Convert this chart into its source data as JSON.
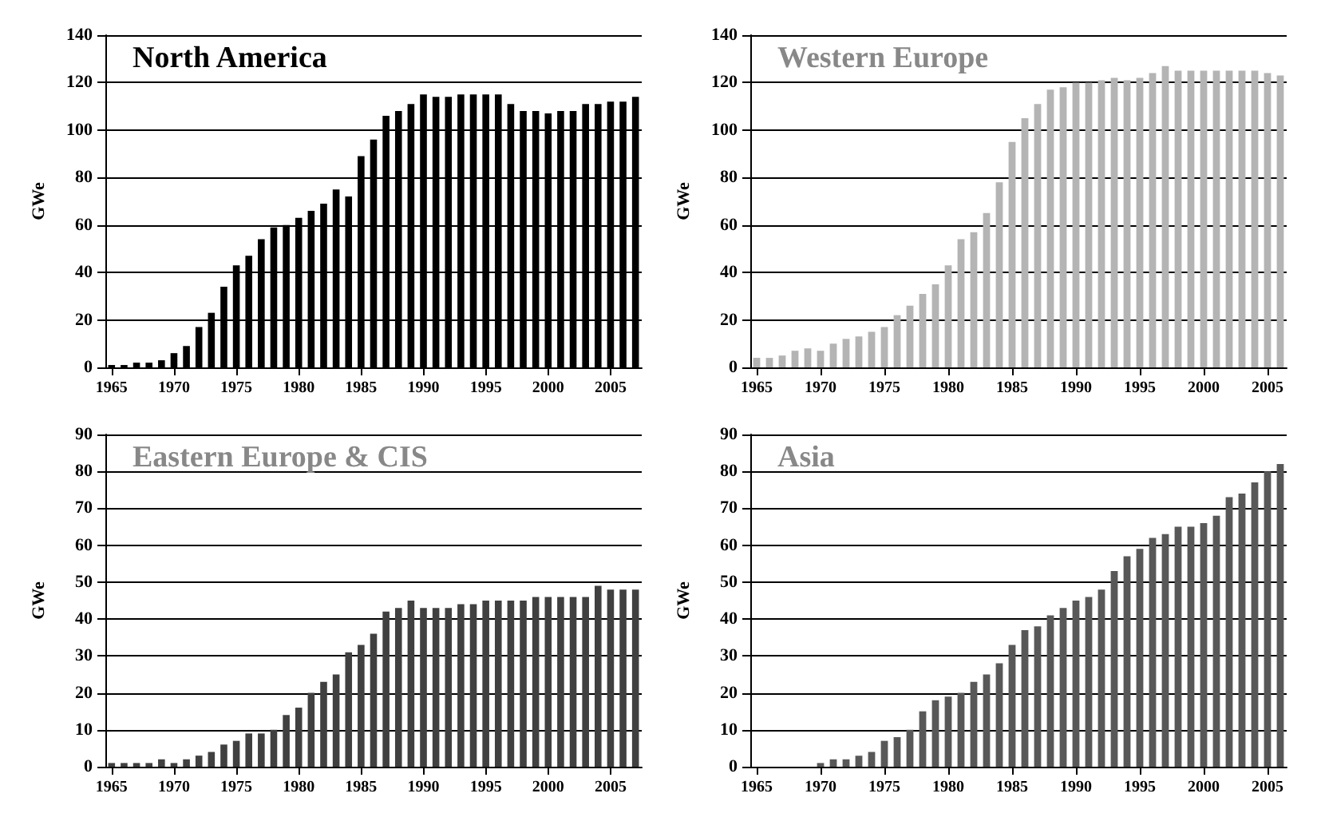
{
  "chart_data": [
    {
      "type": "bar",
      "title": "North America",
      "ylabel": "GWe",
      "categories": [
        "1965",
        null,
        null,
        null,
        null,
        "1970",
        null,
        null,
        null,
        null,
        "1975",
        null,
        null,
        null,
        null,
        "1980",
        null,
        null,
        null,
        null,
        "1985",
        null,
        null,
        null,
        null,
        "1990",
        null,
        null,
        null,
        null,
        "1995",
        null,
        null,
        null,
        null,
        "2000",
        null,
        null,
        null,
        null,
        "2005",
        null,
        null
      ],
      "series": [
        {
          "color": "#000000",
          "values": [
            1,
            1,
            2,
            2,
            3,
            6,
            9,
            17,
            23,
            34,
            43,
            47,
            54,
            59,
            60,
            63,
            66,
            69,
            75,
            72,
            89,
            96,
            106,
            108,
            111,
            115,
            114,
            114,
            115,
            115,
            115,
            115,
            111,
            108,
            108,
            107,
            108,
            108,
            111,
            111,
            112,
            112,
            114
          ]
        }
      ],
      "ylim": [
        0,
        140
      ],
      "yticks": [
        0,
        20,
        40,
        60,
        80,
        100,
        120,
        140
      ],
      "grid": "y"
    },
    {
      "type": "bar",
      "title": "Western Europe",
      "ylabel": "GWe",
      "categories": [
        "1965",
        null,
        null,
        null,
        null,
        "1970",
        null,
        null,
        null,
        null,
        "1975",
        null,
        null,
        null,
        null,
        "1980",
        null,
        null,
        null,
        null,
        "1985",
        null,
        null,
        null,
        null,
        "1990",
        null,
        null,
        null,
        null,
        "1995",
        null,
        null,
        null,
        null,
        "2000",
        null,
        null,
        null,
        null,
        "2005",
        null
      ],
      "series": [
        {
          "color": "#b4b4b4",
          "values": [
            4,
            4,
            5,
            7,
            8,
            7,
            10,
            12,
            13,
            15,
            17,
            22,
            26,
            31,
            35,
            43,
            54,
            57,
            65,
            78,
            95,
            105,
            111,
            117,
            118,
            120,
            120,
            121,
            122,
            121,
            122,
            124,
            127,
            125,
            125,
            125,
            125,
            125,
            125,
            125,
            124,
            123
          ]
        }
      ],
      "ylim": [
        0,
        140
      ],
      "yticks": [
        0,
        20,
        40,
        60,
        80,
        100,
        120,
        140
      ],
      "grid": "y"
    },
    {
      "type": "bar",
      "title": "Eastern Europe & CIS",
      "ylabel": "GWe",
      "categories": [
        "1965",
        null,
        null,
        null,
        null,
        "1970",
        null,
        null,
        null,
        null,
        "1975",
        null,
        null,
        null,
        null,
        "1980",
        null,
        null,
        null,
        null,
        "1985",
        null,
        null,
        null,
        null,
        "1990",
        null,
        null,
        null,
        null,
        "1995",
        null,
        null,
        null,
        null,
        "2000",
        null,
        null,
        null,
        null,
        "2005",
        null,
        null
      ],
      "series": [
        {
          "color": "#404040",
          "values": [
            1,
            1,
            1,
            1,
            2,
            1,
            2,
            3,
            4,
            6,
            7,
            9,
            9,
            10,
            14,
            16,
            20,
            23,
            25,
            31,
            33,
            36,
            42,
            43,
            45,
            43,
            43,
            43,
            44,
            44,
            45,
            45,
            45,
            45,
            46,
            46,
            46,
            46,
            46,
            49,
            48,
            48,
            48
          ]
        }
      ],
      "ylim": [
        0,
        90
      ],
      "yticks": [
        0,
        10,
        20,
        30,
        40,
        50,
        60,
        70,
        80,
        90
      ],
      "grid": "y"
    },
    {
      "type": "bar",
      "title": "Asia",
      "ylabel": "GWe",
      "categories": [
        "1965",
        null,
        null,
        null,
        null,
        "1970",
        null,
        null,
        null,
        null,
        "1975",
        null,
        null,
        null,
        null,
        "1980",
        null,
        null,
        null,
        null,
        "1985",
        null,
        null,
        null,
        null,
        "1990",
        null,
        null,
        null,
        null,
        "1995",
        null,
        null,
        null,
        null,
        "2000",
        null,
        null,
        null,
        null,
        "2005",
        null
      ],
      "series": [
        {
          "color": "#585858",
          "values": [
            0,
            0,
            0,
            0,
            0,
            1,
            2,
            2,
            3,
            4,
            7,
            8,
            10,
            15,
            18,
            19,
            20,
            23,
            25,
            28,
            33,
            37,
            38,
            41,
            43,
            45,
            46,
            48,
            53,
            57,
            59,
            62,
            63,
            65,
            65,
            66,
            68,
            73,
            74,
            77,
            80,
            82
          ]
        }
      ],
      "ylim": [
        0,
        90
      ],
      "yticks": [
        0,
        10,
        20,
        30,
        40,
        50,
        60,
        70,
        80,
        90
      ],
      "grid": "y"
    }
  ]
}
